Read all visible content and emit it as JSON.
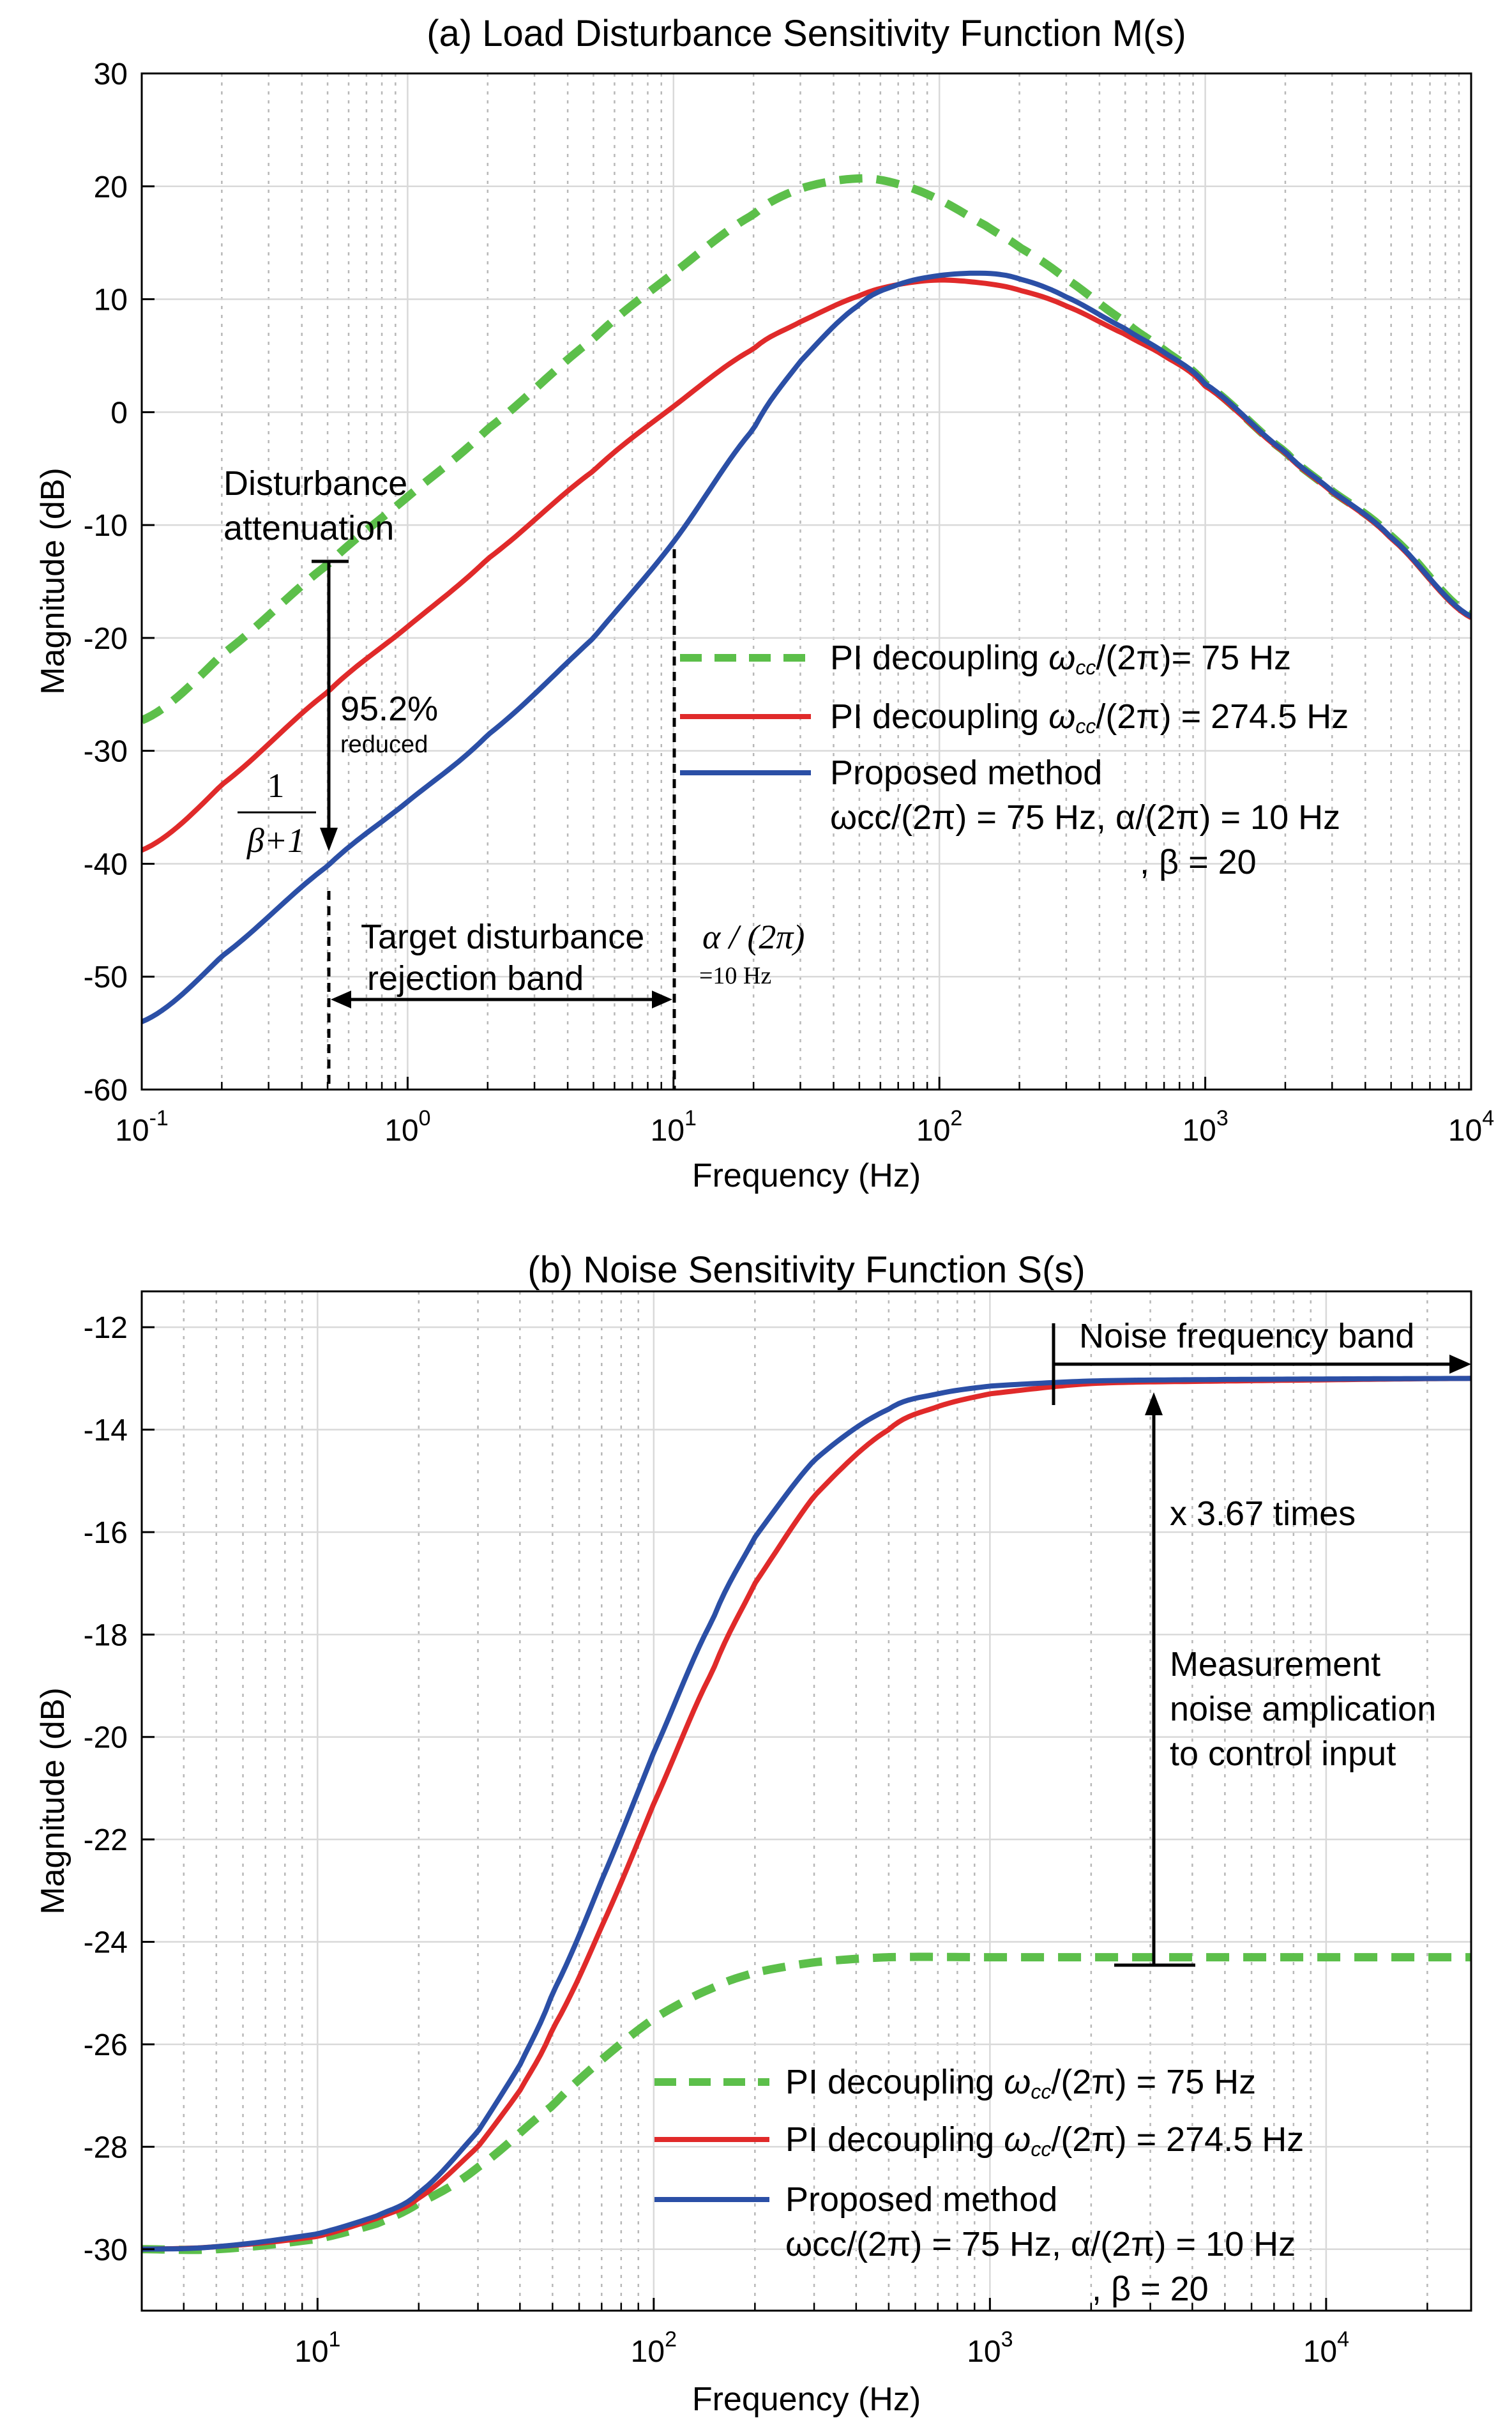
{
  "chart_data": [
    {
      "type": "line",
      "title": "(a) Load Disturbance Sensitivity Function M(s)",
      "xlabel": "Frequency  (Hz)",
      "ylabel": "Magnitude (dB)",
      "xscale": "log",
      "xlim": [
        0.1,
        10000
      ],
      "ylim": [
        -60,
        30
      ],
      "xticks": [
        {
          "value": 0.1,
          "base": "10",
          "exp": "-1"
        },
        {
          "value": 1,
          "base": "10",
          "exp": "0"
        },
        {
          "value": 10,
          "base": "10",
          "exp": "1"
        },
        {
          "value": 100,
          "base": "10",
          "exp": "2"
        },
        {
          "value": 1000,
          "base": "10",
          "exp": "3"
        },
        {
          "value": 10000,
          "base": "10",
          "exp": "4"
        }
      ],
      "yticks": [
        {
          "value": 30,
          "label": "30"
        },
        {
          "value": 20,
          "label": "20"
        },
        {
          "value": 10,
          "label": "10"
        },
        {
          "value": 0,
          "label": "0"
        },
        {
          "value": -10,
          "label": "-10"
        },
        {
          "value": -20,
          "label": "-20"
        },
        {
          "value": -30,
          "label": "-30"
        },
        {
          "value": -40,
          "label": "-40"
        },
        {
          "value": -50,
          "label": "-50"
        },
        {
          "value": -60,
          "label": "-60"
        }
      ],
      "grid": true,
      "legend_position": "center-right",
      "series": [
        {
          "name": "PI decoupling ωcc/(2π)= 75 Hz",
          "color": "#5cbf4a",
          "style": "dashed",
          "x": [
            0.1,
            0.2,
            0.5,
            1,
            2,
            5,
            10,
            20,
            30,
            50,
            70,
            100,
            150,
            200,
            300,
            500,
            700,
            1000,
            2000,
            3000,
            5000,
            10000
          ],
          "y": [
            -27.3,
            -21.5,
            -13.5,
            -7.5,
            -1.5,
            6.5,
            12.3,
            17.5,
            19.8,
            20.7,
            20.2,
            18.8,
            16.5,
            14.6,
            11.8,
            8.0,
            5.5,
            2.5,
            -3.5,
            -7.0,
            -11.0,
            -18.0
          ]
        },
        {
          "name": "PI decoupling ωcc/(2π) = 274.5 Hz",
          "color": "#e02a2a",
          "style": "solid",
          "x": [
            0.1,
            0.2,
            0.5,
            1,
            2,
            5,
            10,
            20,
            30,
            50,
            70,
            100,
            150,
            200,
            300,
            500,
            700,
            1000,
            2000,
            3000,
            5000,
            10000
          ],
          "y": [
            -38.8,
            -33.0,
            -24.8,
            -19.0,
            -13.0,
            -5.2,
            0.5,
            5.6,
            8.0,
            10.3,
            11.3,
            11.7,
            11.4,
            10.8,
            9.4,
            6.9,
            5.0,
            2.3,
            -3.6,
            -7.1,
            -11.2,
            -18.2
          ]
        },
        {
          "name": "Proposed method",
          "color": "#2b4fa6",
          "style": "solid",
          "x": [
            0.1,
            0.2,
            0.5,
            1,
            2,
            5,
            10,
            20,
            30,
            50,
            70,
            100,
            150,
            200,
            300,
            500,
            700,
            1000,
            2000,
            3000,
            5000,
            10000
          ],
          "y": [
            -54.0,
            -48.2,
            -40.2,
            -34.5,
            -28.6,
            -20.0,
            -11.5,
            -1.5,
            4.5,
            9.5,
            11.3,
            12.1,
            12.3,
            11.8,
            10.2,
            7.4,
            5.3,
            2.5,
            -3.5,
            -7.0,
            -11.1,
            -18.1
          ]
        }
      ],
      "legend": [
        {
          "line1": "PI decoupling ",
          "w": "ω",
          "sub": "cc",
          "rest": "/(2π)= 75 Hz"
        },
        {
          "line1": "PI decoupling ",
          "w": "ω",
          "sub": "cc",
          "rest": "/(2π) = 274.5 Hz"
        },
        {
          "line1": "Proposed method",
          "line2": "ωcc/(2π) = 75 Hz, α/(2π) = 10 Hz",
          "line3": ", β = 20"
        }
      ],
      "annotations": {
        "attenuation_1": "Disturbance",
        "attenuation_2": "attenuation",
        "percent": "95.2%",
        "percent_sub": "reduced",
        "fraction_num": "1",
        "fraction_den": "β+1",
        "band_1": "Target disturbance",
        "band_2": "rejection band",
        "alpha_1": "α / (2π)",
        "alpha_2": "=10 Hz"
      }
    },
    {
      "type": "line",
      "title": "(b) Noise Sensitivity Function S(s)",
      "xlabel": "Frequency  (Hz)",
      "ylabel": "Magnitude (dB)",
      "xscale": "log",
      "xlim": [
        3,
        27000
      ],
      "ylim": [
        -31.2,
        -11.3
      ],
      "xticks": [
        {
          "value": 10,
          "base": "10",
          "exp": "1"
        },
        {
          "value": 100,
          "base": "10",
          "exp": "2"
        },
        {
          "value": 1000,
          "base": "10",
          "exp": "3"
        },
        {
          "value": 10000,
          "base": "10",
          "exp": "4"
        }
      ],
      "yticks": [
        {
          "value": -12,
          "label": "-12"
        },
        {
          "value": -14,
          "label": "-14"
        },
        {
          "value": -16,
          "label": "-16"
        },
        {
          "value": -18,
          "label": "-18"
        },
        {
          "value": -20,
          "label": "-20"
        },
        {
          "value": -22,
          "label": "-22"
        },
        {
          "value": -24,
          "label": "-24"
        },
        {
          "value": -26,
          "label": "-26"
        },
        {
          "value": -28,
          "label": "-28"
        },
        {
          "value": -30,
          "label": "-30"
        }
      ],
      "grid": true,
      "legend_position": "bottom-center",
      "series": [
        {
          "name": "PI decoupling ωcc/(2π) = 75 Hz",
          "color": "#5cbf4a",
          "style": "dashed",
          "x": [
            3,
            5,
            10,
            15,
            20,
            30,
            50,
            70,
            100,
            150,
            200,
            300,
            500,
            1000,
            2000,
            5000,
            27000
          ],
          "y": [
            -30.0,
            -30.0,
            -29.8,
            -29.5,
            -29.1,
            -28.4,
            -27.2,
            -26.3,
            -25.5,
            -24.9,
            -24.6,
            -24.4,
            -24.3,
            -24.3,
            -24.3,
            -24.3,
            -24.3
          ]
        },
        {
          "name": "PI decoupling ωcc/(2π) = 274.5 Hz",
          "color": "#e02a2a",
          "style": "solid",
          "x": [
            3,
            5,
            10,
            15,
            20,
            30,
            40,
            50,
            70,
            100,
            150,
            200,
            300,
            500,
            700,
            1000,
            2000,
            5000,
            27000
          ],
          "y": [
            -30.0,
            -29.95,
            -29.75,
            -29.4,
            -29.0,
            -28.0,
            -26.9,
            -25.7,
            -23.7,
            -21.3,
            -18.7,
            -17.0,
            -15.3,
            -14.0,
            -13.55,
            -13.3,
            -13.1,
            -13.05,
            -13.0
          ]
        },
        {
          "name": "Proposed method",
          "color": "#2b4fa6",
          "style": "solid",
          "x": [
            3,
            5,
            10,
            15,
            20,
            30,
            40,
            50,
            70,
            100,
            150,
            200,
            300,
            500,
            700,
            1000,
            2000,
            5000,
            27000
          ],
          "y": [
            -30.0,
            -29.95,
            -29.7,
            -29.35,
            -28.9,
            -27.7,
            -26.4,
            -25.0,
            -22.8,
            -20.3,
            -17.7,
            -16.1,
            -14.6,
            -13.6,
            -13.3,
            -13.15,
            -13.05,
            -13.02,
            -13.0
          ]
        }
      ],
      "legend": [
        {
          "line1": "PI decoupling ",
          "w": "ω",
          "sub": "cc",
          "rest": "/(2π) = 75 Hz"
        },
        {
          "line1": "PI decoupling ",
          "w": "ω",
          "sub": "cc",
          "rest": "/(2π) = 274.5 Hz"
        },
        {
          "line1": "Proposed method",
          "line2": "ωcc/(2π) = 75 Hz, α/(2π) = 10 Hz",
          "line3": ", β = 20"
        }
      ],
      "annotations": {
        "noise_band": "Noise frequency band",
        "times": "x 3.67 times",
        "meas_1": "Measurement",
        "meas_2": "noise amplication",
        "meas_3": "to control input"
      }
    }
  ]
}
